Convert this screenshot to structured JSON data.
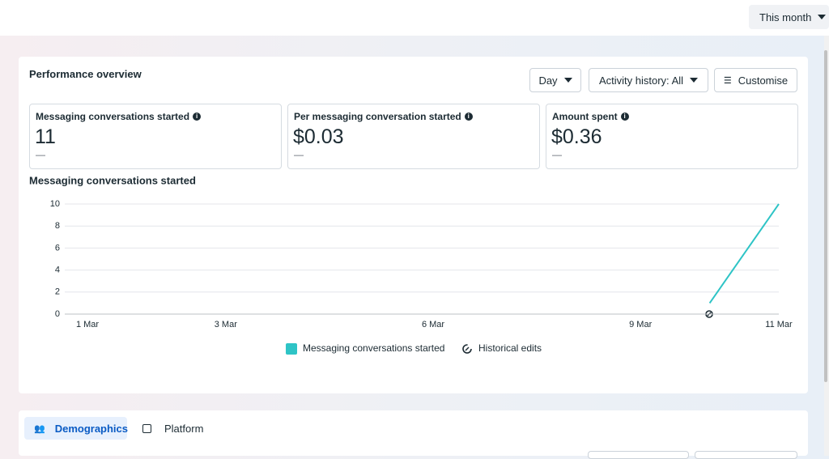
{
  "header": {
    "period_button": "This month"
  },
  "panel": {
    "title": "Performance overview",
    "buttons": [
      "Day",
      "Activity history: All",
      "Customise"
    ]
  },
  "metrics": [
    {
      "label": "Messaging conversations started",
      "value": "11",
      "change": "—"
    },
    {
      "label": "Per messaging conversation started",
      "value": "$0.03",
      "change": "—"
    },
    {
      "label": "Amount spent",
      "value": "$0.36",
      "change": "—"
    }
  ],
  "chart_data": {
    "type": "line",
    "title": "Messaging conversations started",
    "categories": [
      "1 Mar",
      null,
      "3 Mar",
      null,
      null,
      "6 Mar",
      null,
      null,
      "9 Mar",
      null,
      "11 Mar"
    ],
    "series": [
      {
        "name": "Messaging conversations started",
        "color": "#2ec4c6",
        "values": [
          null,
          null,
          null,
          null,
          null,
          null,
          null,
          null,
          null,
          1,
          10
        ]
      }
    ],
    "ylim": [
      0,
      10
    ],
    "yticks": [
      0,
      2,
      4,
      6,
      8,
      10
    ],
    "grid": true,
    "historical_edits_label": "Historical edits"
  },
  "tabs": [
    "Demographics",
    "Platform"
  ]
}
